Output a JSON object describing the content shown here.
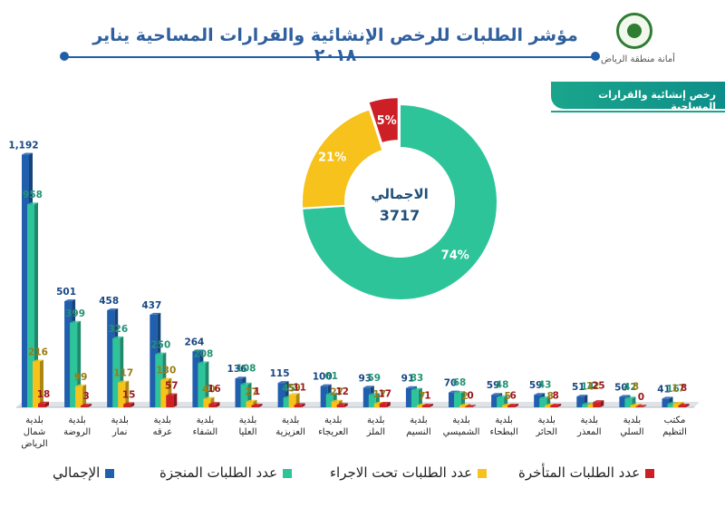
{
  "header": {
    "title": "مؤشر الطلبات للرخص الإنشائية والقرارات المساحية يناير ٢٠١٨",
    "logo_text": "أمانة منطقة الرياض",
    "logo_seal_text": "الرياض",
    "banner": "رخص إنشائية والقرارات المساحية"
  },
  "colors": {
    "total": "#1f5fae",
    "completed": "#2ec49a",
    "in_progress": "#f6c21b",
    "late": "#cc1f26",
    "accent": "#1aa58b"
  },
  "chart_data": [
    {
      "type": "bar",
      "categories": [
        "بلدية شمال الرياض",
        "بلدية الروضة",
        "بلدية نمار",
        "بلدية عرقه",
        "بلدية الشفاء",
        "بلدية العليا",
        "بلدية العزيزية",
        "بلدية العريجاء",
        "بلدية الملز",
        "بلدية النسيم",
        "بلدية الشميسي",
        "بلدية البطحاء",
        "بلدية الحائر",
        "بلدية المعذر",
        "بلدية السلي",
        "مكتب التظيم"
      ],
      "series": [
        {
          "name": "الإجمالي",
          "color": "#1f5fae",
          "values": [
            1192,
            501,
            458,
            437,
            264,
            136,
            115,
            100,
            93,
            91,
            70,
            59,
            59,
            51,
            50,
            41
          ]
        },
        {
          "name": "عدد الطلبات المنجزة",
          "color": "#2ec49a",
          "values": [
            958,
            399,
            326,
            250,
            208,
            108,
            45,
            61,
            59,
            83,
            68,
            48,
            43,
            14,
            42,
            16
          ]
        },
        {
          "name": "عدد الطلبات تحت الاجراء",
          "color": "#f6c21b",
          "values": [
            216,
            99,
            117,
            130,
            40,
            27,
            59,
            27,
            17,
            7,
            2,
            5,
            8,
            12,
            8,
            17
          ]
        },
        {
          "name": "عدد الطلبات المتأخرة",
          "color": "#cc1f26",
          "values": [
            18,
            3,
            15,
            57,
            16,
            1,
            11,
            12,
            17,
            1,
            0,
            6,
            8,
            25,
            0,
            8
          ]
        }
      ],
      "legend": "bottom",
      "ylim": [
        0,
        1250
      ]
    },
    {
      "type": "pie",
      "labels": [
        "عدد الطلبات المنجزة",
        "عدد الطلبات تحت الاجراء",
        "عدد الطلبات المتأخرة"
      ],
      "values": [
        74,
        21,
        5
      ],
      "value_labels": [
        "74%",
        "21%",
        "5%"
      ],
      "colors": [
        "#2ec49a",
        "#f6c21b",
        "#cc1f26"
      ],
      "center_label": "الاجمالي",
      "center_value": "3717"
    }
  ]
}
